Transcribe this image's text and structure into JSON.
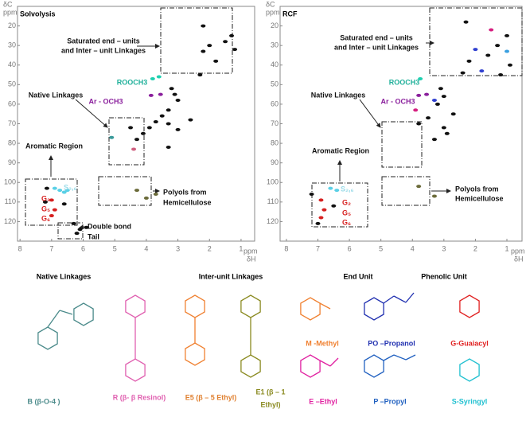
{
  "panels": [
    {
      "title": "Solvolysis",
      "y_label": "δC",
      "y_unit": "ppm",
      "x_label": "δH",
      "x_unit": "ppm",
      "xlim": [
        8.08,
        0.57
      ],
      "ylim": [
        10,
        130
      ],
      "xticks": [
        8,
        7,
        6,
        5,
        4,
        3,
        2,
        1
      ],
      "yticks": [
        20,
        30,
        40,
        50,
        60,
        70,
        80,
        90,
        100,
        110,
        120
      ],
      "annotations": [
        "Saturated end – units",
        "and Inter – unit Linkages",
        "ROOCH3",
        "Ar - OCH3",
        "Native Linkages",
        "Aromatic Region",
        "Polyols from",
        "Hemicellulose",
        "Double bond",
        "Tail",
        "G₂",
        "G₅",
        "G₆",
        "S₂,₆"
      ],
      "peaks": [
        {
          "x": 6.74,
          "y": 104,
          "color": "#5ad0e6"
        },
        {
          "x": 6.9,
          "y": 103,
          "color": "#5ad0e6"
        },
        {
          "x": 6.6,
          "y": 105,
          "color": "#5ad0e6"
        },
        {
          "x": 6.5,
          "y": 104,
          "color": "#5ad0e6"
        },
        {
          "x": 7.0,
          "y": 109,
          "color": "#d62020"
        },
        {
          "x": 6.9,
          "y": 114,
          "color": "#d62020"
        },
        {
          "x": 7.0,
          "y": 117,
          "color": "#d62020"
        },
        {
          "x": 7.15,
          "y": 103,
          "color": "#111"
        },
        {
          "x": 7.2,
          "y": 110,
          "color": "#111"
        },
        {
          "x": 6.6,
          "y": 111,
          "color": "#111"
        },
        {
          "x": 6.3,
          "y": 121,
          "color": "#111"
        },
        {
          "x": 6.1,
          "y": 124,
          "color": "#111"
        },
        {
          "x": 5.9,
          "y": 123,
          "color": "#111"
        },
        {
          "x": 6.2,
          "y": 126,
          "color": "#111"
        },
        {
          "x": 3.8,
          "y": 47,
          "color": "#1fd0b0"
        },
        {
          "x": 3.6,
          "y": 46,
          "color": "#1fd0b0"
        },
        {
          "x": 3.85,
          "y": 55.5,
          "color": "#8a1f9c"
        },
        {
          "x": 3.55,
          "y": 55,
          "color": "#8a1f9c"
        },
        {
          "x": 3.2,
          "y": 52,
          "color": "#111"
        },
        {
          "x": 3.1,
          "y": 55,
          "color": "#111"
        },
        {
          "x": 3.0,
          "y": 58,
          "color": "#111"
        },
        {
          "x": 3.3,
          "y": 63,
          "color": "#111"
        },
        {
          "x": 3.5,
          "y": 66,
          "color": "#111"
        },
        {
          "x": 3.7,
          "y": 69,
          "color": "#111"
        },
        {
          "x": 3.9,
          "y": 72,
          "color": "#111"
        },
        {
          "x": 4.1,
          "y": 75,
          "color": "#111"
        },
        {
          "x": 4.3,
          "y": 78,
          "color": "#111"
        },
        {
          "x": 3.3,
          "y": 70,
          "color": "#111"
        },
        {
          "x": 3.0,
          "y": 73,
          "color": "#111"
        },
        {
          "x": 2.6,
          "y": 68,
          "color": "#111"
        },
        {
          "x": 4.5,
          "y": 72,
          "color": "#111"
        },
        {
          "x": 3.3,
          "y": 82,
          "color": "#111"
        },
        {
          "x": 5.1,
          "y": 77,
          "color": "#3a9a9a"
        },
        {
          "x": 4.4,
          "y": 83,
          "color": "#d06080"
        },
        {
          "x": 2.2,
          "y": 33,
          "color": "#111"
        },
        {
          "x": 2.0,
          "y": 30,
          "color": "#111"
        },
        {
          "x": 1.5,
          "y": 28,
          "color": "#111"
        },
        {
          "x": 1.3,
          "y": 25,
          "color": "#111"
        },
        {
          "x": 2.3,
          "y": 45,
          "color": "#111"
        },
        {
          "x": 1.8,
          "y": 38,
          "color": "#111"
        },
        {
          "x": 1.2,
          "y": 32,
          "color": "#111"
        },
        {
          "x": 2.2,
          "y": 20,
          "color": "#111"
        },
        {
          "x": 4.3,
          "y": 104,
          "color": "#6b6b3a"
        },
        {
          "x": 3.7,
          "y": 106,
          "color": "#6b6b3a"
        },
        {
          "x": 4.0,
          "y": 108,
          "color": "#6b6b3a"
        }
      ]
    },
    {
      "title": "RCF",
      "y_label": "δC",
      "y_unit": "ppm",
      "x_label": "δH",
      "x_unit": "ppm",
      "xlim": [
        8.2,
        0.52
      ],
      "ylim": [
        10,
        130
      ],
      "xticks": [
        8,
        7,
        6,
        5,
        4,
        3,
        2,
        1
      ],
      "yticks": [
        20,
        30,
        40,
        50,
        60,
        70,
        80,
        90,
        100,
        110,
        120
      ],
      "annotations": [
        "Saturated end – units",
        "and Inter – unit Linkages",
        "ROOCH3",
        "Ar - OCH3",
        "Native Linkages",
        "Aromatic Region",
        "Polyols from",
        "Hemicellulose",
        "G₂",
        "G₅",
        "G₆",
        "S₂,₆"
      ],
      "peaks": [
        {
          "x": 6.6,
          "y": 103,
          "color": "#5ad0e6"
        },
        {
          "x": 6.4,
          "y": 104,
          "color": "#5ad0e6"
        },
        {
          "x": 6.9,
          "y": 109,
          "color": "#d62020"
        },
        {
          "x": 6.8,
          "y": 114,
          "color": "#d62020"
        },
        {
          "x": 6.9,
          "y": 118,
          "color": "#d62020"
        },
        {
          "x": 7.2,
          "y": 106,
          "color": "#111"
        },
        {
          "x": 6.5,
          "y": 112,
          "color": "#111"
        },
        {
          "x": 7.0,
          "y": 121,
          "color": "#111"
        },
        {
          "x": 3.75,
          "y": 47,
          "color": "#1fd0b0"
        },
        {
          "x": 3.8,
          "y": 55.5,
          "color": "#8a1f9c"
        },
        {
          "x": 3.55,
          "y": 55,
          "color": "#8a1f9c"
        },
        {
          "x": 3.3,
          "y": 58,
          "color": "#3040d0"
        },
        {
          "x": 3.9,
          "y": 63,
          "color": "#d62080"
        },
        {
          "x": 3.1,
          "y": 52,
          "color": "#111"
        },
        {
          "x": 3.0,
          "y": 56,
          "color": "#111"
        },
        {
          "x": 3.2,
          "y": 60,
          "color": "#111"
        },
        {
          "x": 3.5,
          "y": 67,
          "color": "#111"
        },
        {
          "x": 3.8,
          "y": 70,
          "color": "#111"
        },
        {
          "x": 3.0,
          "y": 72,
          "color": "#111"
        },
        {
          "x": 2.7,
          "y": 65,
          "color": "#111"
        },
        {
          "x": 3.3,
          "y": 78,
          "color": "#111"
        },
        {
          "x": 2.9,
          "y": 75,
          "color": "#111"
        },
        {
          "x": 2.3,
          "y": 18,
          "color": "#111"
        },
        {
          "x": 1.5,
          "y": 22,
          "color": "#d62080"
        },
        {
          "x": 1.0,
          "y": 25,
          "color": "#111"
        },
        {
          "x": 1.3,
          "y": 30,
          "color": "#111"
        },
        {
          "x": 2.0,
          "y": 32,
          "color": "#3040d0"
        },
        {
          "x": 2.2,
          "y": 38,
          "color": "#111"
        },
        {
          "x": 1.6,
          "y": 35,
          "color": "#111"
        },
        {
          "x": 1.0,
          "y": 33,
          "color": "#3aa0e0"
        },
        {
          "x": 0.9,
          "y": 40,
          "color": "#111"
        },
        {
          "x": 2.4,
          "y": 44,
          "color": "#111"
        },
        {
          "x": 1.8,
          "y": 43,
          "color": "#3040d0"
        },
        {
          "x": 1.2,
          "y": 45,
          "color": "#111"
        },
        {
          "x": 3.8,
          "y": 102,
          "color": "#6b6b3a"
        },
        {
          "x": 3.3,
          "y": 107,
          "color": "#6b6b3a"
        }
      ]
    }
  ],
  "structures": {
    "headings": [
      "Native Linkages",
      "Inter-unit Linkages",
      "End Unit",
      "Phenolic Unit"
    ],
    "labels": [
      "B (β-O-4 )",
      "R (β- β Resinol)",
      "E5 (β – 5 Ethyl)",
      "E1 (β – 1",
      "Ethyl)",
      "M -Methyl",
      "PO –Propanol",
      "G-Guaiacyl",
      "E –Ethyl",
      "P –Propyl",
      "S-Syringyl"
    ]
  }
}
